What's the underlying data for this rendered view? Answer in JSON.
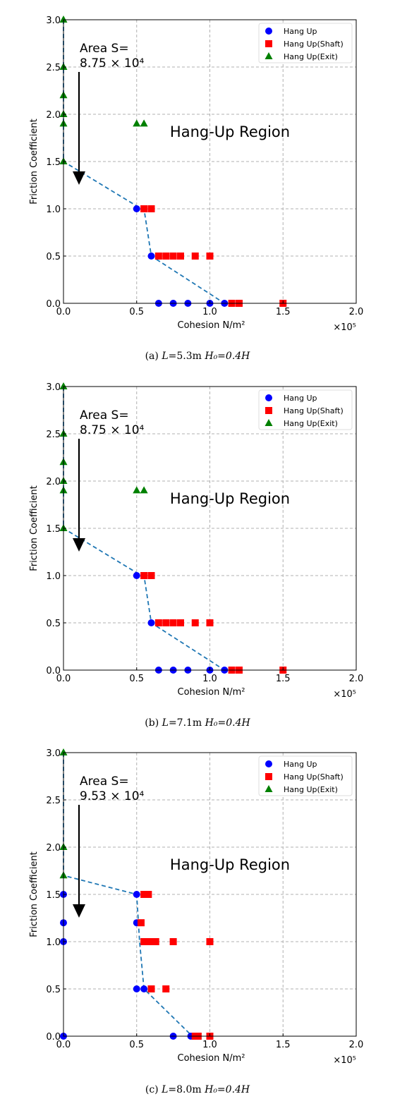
{
  "legend_labels": {
    "hang_up": "Hang Up",
    "shaft": "Hang Up(Shaft)",
    "exit": "Hang Up(Exit)"
  },
  "colors": {
    "hang_up": "#0000ff",
    "shaft": "#ff0000",
    "exit": "#008000",
    "boundary": "#1f77b4",
    "grid": "#b0b0b0"
  },
  "chart_data": [
    {
      "type": "scatter",
      "xlabel": "Cohesion N/m²",
      "ylabel": "Friction Coefficient",
      "x_multiplier": "×10⁵",
      "xlim": [
        0,
        2.0
      ],
      "ylim": [
        0,
        3.0
      ],
      "xticks": [
        "0.0",
        "0.5",
        "1.0",
        "1.5",
        "2.0"
      ],
      "yticks": [
        "0.0",
        "0.5",
        "1.0",
        "1.5",
        "2.0",
        "2.5",
        "3.0"
      ],
      "grid": true,
      "legend_position": "top-right",
      "region_label": "Hang-Up Region",
      "area_label_line1": "Area S=",
      "area_label_line2": "8.75 × 10⁴",
      "caption": {
        "prefix": "(a) ",
        "L_var": "L",
        "L_val": "=5.3m ",
        "H_text": "H₀=0.4H"
      },
      "series": [
        {
          "name": "Hang Up",
          "key": "hang_up",
          "points": [
            [
              0.5,
              1.0
            ],
            [
              0.55,
              1.0
            ],
            [
              0.6,
              0.5
            ],
            [
              0.65,
              0.0
            ],
            [
              0.75,
              0.0
            ],
            [
              0.85,
              0.0
            ],
            [
              1.0,
              0.0
            ],
            [
              1.1,
              0.0
            ]
          ]
        },
        {
          "name": "Hang Up(Shaft)",
          "key": "shaft",
          "points": [
            [
              0.55,
              1.0
            ],
            [
              0.6,
              1.0
            ],
            [
              0.65,
              0.5
            ],
            [
              0.7,
              0.5
            ],
            [
              0.75,
              0.5
            ],
            [
              0.8,
              0.5
            ],
            [
              0.9,
              0.5
            ],
            [
              1.0,
              0.5
            ],
            [
              1.15,
              0.0
            ],
            [
              1.2,
              0.0
            ],
            [
              1.5,
              0.0
            ]
          ]
        },
        {
          "name": "Hang Up(Exit)",
          "key": "exit",
          "points": [
            [
              0.0,
              3.0
            ],
            [
              0.0,
              2.5
            ],
            [
              0.0,
              2.2
            ],
            [
              0.0,
              2.0
            ],
            [
              0.0,
              1.9
            ],
            [
              0.0,
              1.5
            ],
            [
              0.5,
              1.9
            ],
            [
              0.55,
              1.9
            ]
          ]
        }
      ],
      "boundary": [
        [
          0.0,
          3.0
        ],
        [
          0.0,
          1.5
        ],
        [
          0.5,
          1.03
        ],
        [
          0.55,
          1.0
        ],
        [
          0.6,
          0.5
        ],
        [
          1.1,
          0.0
        ]
      ]
    },
    {
      "type": "scatter",
      "xlabel": "Cohesion N/m²",
      "ylabel": "Friction Coefficient",
      "x_multiplier": "×10⁵",
      "xlim": [
        0,
        2.0
      ],
      "ylim": [
        0,
        3.0
      ],
      "xticks": [
        "0.0",
        "0.5",
        "1.0",
        "1.5",
        "2.0"
      ],
      "yticks": [
        "0.0",
        "0.5",
        "1.0",
        "1.5",
        "2.0",
        "2.5",
        "3.0"
      ],
      "grid": true,
      "legend_position": "top-right",
      "region_label": "Hang-Up Region",
      "area_label_line1": "Area S=",
      "area_label_line2": "8.75 × 10⁴",
      "caption": {
        "prefix": "(b) ",
        "L_var": "L",
        "L_val": "=7.1m ",
        "H_text": "H₀=0.4H"
      },
      "series": [
        {
          "name": "Hang Up",
          "key": "hang_up",
          "points": [
            [
              0.5,
              1.0
            ],
            [
              0.55,
              1.0
            ],
            [
              0.6,
              0.5
            ],
            [
              0.65,
              0.0
            ],
            [
              0.75,
              0.0
            ],
            [
              0.85,
              0.0
            ],
            [
              1.0,
              0.0
            ],
            [
              1.1,
              0.0
            ]
          ]
        },
        {
          "name": "Hang Up(Shaft)",
          "key": "shaft",
          "points": [
            [
              0.55,
              1.0
            ],
            [
              0.6,
              1.0
            ],
            [
              0.65,
              0.5
            ],
            [
              0.7,
              0.5
            ],
            [
              0.75,
              0.5
            ],
            [
              0.8,
              0.5
            ],
            [
              0.9,
              0.5
            ],
            [
              1.0,
              0.5
            ],
            [
              1.15,
              0.0
            ],
            [
              1.2,
              0.0
            ],
            [
              1.5,
              0.0
            ]
          ]
        },
        {
          "name": "Hang Up(Exit)",
          "key": "exit",
          "points": [
            [
              0.0,
              3.0
            ],
            [
              0.0,
              2.5
            ],
            [
              0.0,
              2.2
            ],
            [
              0.0,
              2.0
            ],
            [
              0.0,
              1.9
            ],
            [
              0.0,
              1.5
            ],
            [
              0.5,
              1.9
            ],
            [
              0.55,
              1.9
            ]
          ]
        }
      ],
      "boundary": [
        [
          0.0,
          3.0
        ],
        [
          0.0,
          1.5
        ],
        [
          0.5,
          1.03
        ],
        [
          0.55,
          1.0
        ],
        [
          0.6,
          0.5
        ],
        [
          1.1,
          0.0
        ]
      ]
    },
    {
      "type": "scatter",
      "xlabel": "Cohesion N/m²",
      "ylabel": "Friction Coefficient",
      "x_multiplier": "×10⁵",
      "xlim": [
        0,
        2.0
      ],
      "ylim": [
        0,
        3.0
      ],
      "xticks": [
        "0.0",
        "0.5",
        "1.0",
        "1.5",
        "2.0"
      ],
      "yticks": [
        "0.0",
        "0.5",
        "1.0",
        "1.5",
        "2.0",
        "2.5",
        "3.0"
      ],
      "grid": true,
      "legend_position": "top-right",
      "region_label": "Hang-Up Region",
      "area_label_line1": "Area S=",
      "area_label_line2": "9.53 × 10⁴",
      "caption": {
        "prefix": "(c) ",
        "L_var": "L",
        "L_val": "=8.0m ",
        "H_text": "H₀=0.4H"
      },
      "series": [
        {
          "name": "Hang Up",
          "key": "hang_up",
          "points": [
            [
              0.0,
              1.5
            ],
            [
              0.0,
              1.2
            ],
            [
              0.0,
              1.0
            ],
            [
              0.0,
              0.0
            ],
            [
              0.5,
              1.5
            ],
            [
              0.5,
              1.2
            ],
            [
              0.5,
              0.5
            ],
            [
              0.55,
              0.5
            ],
            [
              0.75,
              0.0
            ],
            [
              0.87,
              0.0
            ]
          ]
        },
        {
          "name": "Hang Up(Shaft)",
          "key": "shaft",
          "points": [
            [
              0.55,
              1.5
            ],
            [
              0.58,
              1.5
            ],
            [
              0.53,
              1.2
            ],
            [
              0.55,
              1.0
            ],
            [
              0.58,
              1.0
            ],
            [
              0.6,
              1.0
            ],
            [
              0.63,
              1.0
            ],
            [
              0.75,
              1.0
            ],
            [
              1.0,
              1.0
            ],
            [
              0.6,
              0.5
            ],
            [
              0.7,
              0.5
            ],
            [
              0.9,
              0.0
            ],
            [
              0.92,
              0.0
            ],
            [
              1.0,
              0.0
            ]
          ]
        },
        {
          "name": "Hang Up(Exit)",
          "key": "exit",
          "points": [
            [
              0.0,
              3.0
            ],
            [
              0.0,
              2.0
            ],
            [
              0.0,
              1.7
            ]
          ]
        }
      ],
      "boundary": [
        [
          0.0,
          3.0
        ],
        [
          0.0,
          1.7
        ],
        [
          0.5,
          1.5
        ],
        [
          0.52,
          1.0
        ],
        [
          0.55,
          0.5
        ],
        [
          0.88,
          0.0
        ]
      ]
    }
  ]
}
